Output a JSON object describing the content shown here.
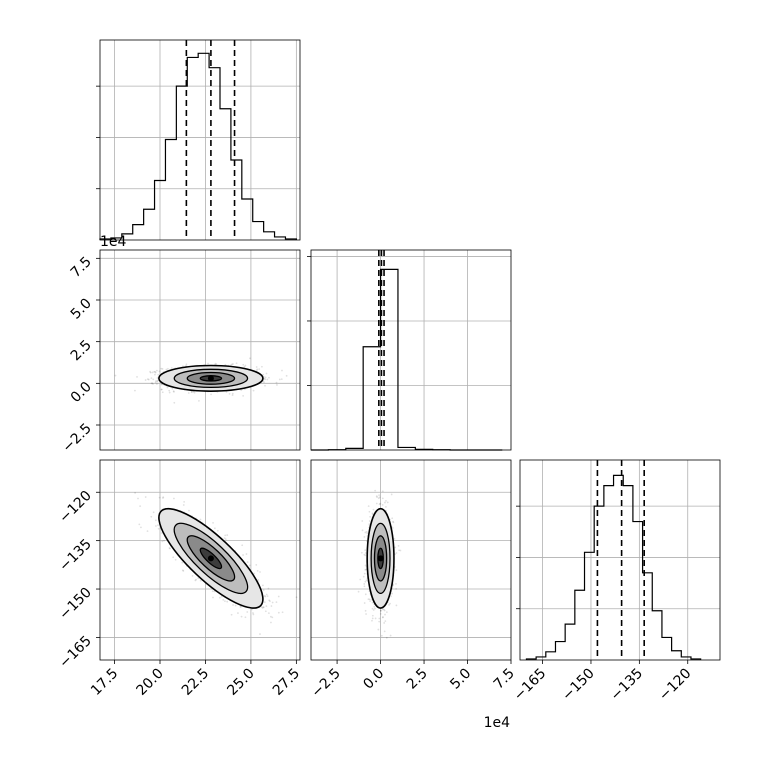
{
  "chart_data": {
    "type": "corner",
    "title": "",
    "grid": true,
    "panels": [
      {
        "id": "hist-p0",
        "kind": "histogram",
        "xlim": [
          16.7,
          27.7
        ],
        "bin_edges": [
          16.7,
          17.3,
          17.9,
          18.5,
          19.1,
          19.7,
          20.3,
          20.9,
          21.5,
          22.1,
          22.7,
          23.3,
          23.9,
          24.5,
          25.1,
          25.7,
          26.3,
          26.9,
          27.5
        ],
        "counts": [
          1,
          2,
          6,
          15,
          30,
          58,
          98,
          150,
          178,
          182,
          168,
          128,
          78,
          40,
          18,
          8,
          3,
          1
        ],
        "quantiles": [
          21.45,
          22.8,
          24.1
        ],
        "ylim": [
          0,
          195
        ],
        "yticks": [
          50,
          100,
          150
        ]
      },
      {
        "id": "hist-p1",
        "kind": "histogram",
        "xlim": [
          -4.0,
          7.5
        ],
        "bin_edges": [
          -4.0,
          -3.0,
          -2.0,
          -1.0,
          0.0,
          1.0,
          2.0,
          3.0,
          4.0,
          5.0,
          6.0,
          7.0
        ],
        "counts": [
          0,
          1,
          5,
          320,
          560,
          8,
          2,
          1,
          0,
          0,
          0
        ],
        "quantiles": [
          -0.1,
          0.05,
          0.2
        ],
        "ylim": [
          0,
          620
        ],
        "yticks": [
          200,
          400,
          600
        ]
      },
      {
        "id": "hist-p2",
        "kind": "histogram",
        "xlim": [
          -172,
          -110
        ],
        "bin_edges": [
          -170,
          -167,
          -164,
          -161,
          -158,
          -155,
          -152,
          -149,
          -146,
          -143,
          -140,
          -137,
          -134,
          -131,
          -128,
          -125,
          -122,
          -119,
          -116
        ],
        "counts": [
          1,
          3,
          8,
          18,
          35,
          68,
          105,
          150,
          170,
          180,
          170,
          135,
          85,
          48,
          22,
          9,
          3,
          1
        ],
        "quantiles": [
          -148,
          -140.5,
          -133.5
        ],
        "ylim": [
          0,
          195
        ],
        "yticks": [
          50,
          100,
          150
        ]
      },
      {
        "id": "joint-p0-p1",
        "kind": "density2d",
        "x_param": 0,
        "y_param": 1,
        "xlim": [
          16.7,
          27.7
        ],
        "ylim": [
          -4.0,
          8.0
        ],
        "center": [
          22.8,
          0.3
        ],
        "spread": [
          1.3,
          0.35
        ],
        "corr": 0.0
      },
      {
        "id": "joint-p0-p2",
        "kind": "density2d",
        "x_param": 0,
        "y_param": 2,
        "xlim": [
          16.7,
          27.7
        ],
        "ylim": [
          -172,
          -110
        ],
        "center": [
          22.8,
          -140.5
        ],
        "spread": [
          1.3,
          7.0
        ],
        "corr": -0.82
      },
      {
        "id": "joint-p1-p2",
        "kind": "density2d",
        "x_param": 1,
        "y_param": 2,
        "xlim": [
          -4.0,
          7.5
        ],
        "ylim": [
          -172,
          -110
        ],
        "center": [
          0.0,
          -140.5
        ],
        "spread": [
          0.35,
          7.0
        ],
        "corr": 0.0
      }
    ],
    "axes": {
      "p0_ticks": [
        "17.5",
        "20.0",
        "22.5",
        "25.0",
        "27.5"
      ],
      "p0_tick_values": [
        17.5,
        20.0,
        22.5,
        25.0,
        27.5
      ],
      "p1_ticks": [
        "−2.5",
        "0.0",
        "2.5",
        "5.0",
        "7.5"
      ],
      "p1_tick_values": [
        -2.5,
        0.0,
        2.5,
        5.0,
        7.5
      ],
      "p2_ticks": [
        "−165",
        "−150",
        "−135",
        "−120"
      ],
      "p2_tick_values": [
        -165,
        -150,
        -135,
        -120
      ],
      "p1_offset_label": "1e4"
    }
  }
}
